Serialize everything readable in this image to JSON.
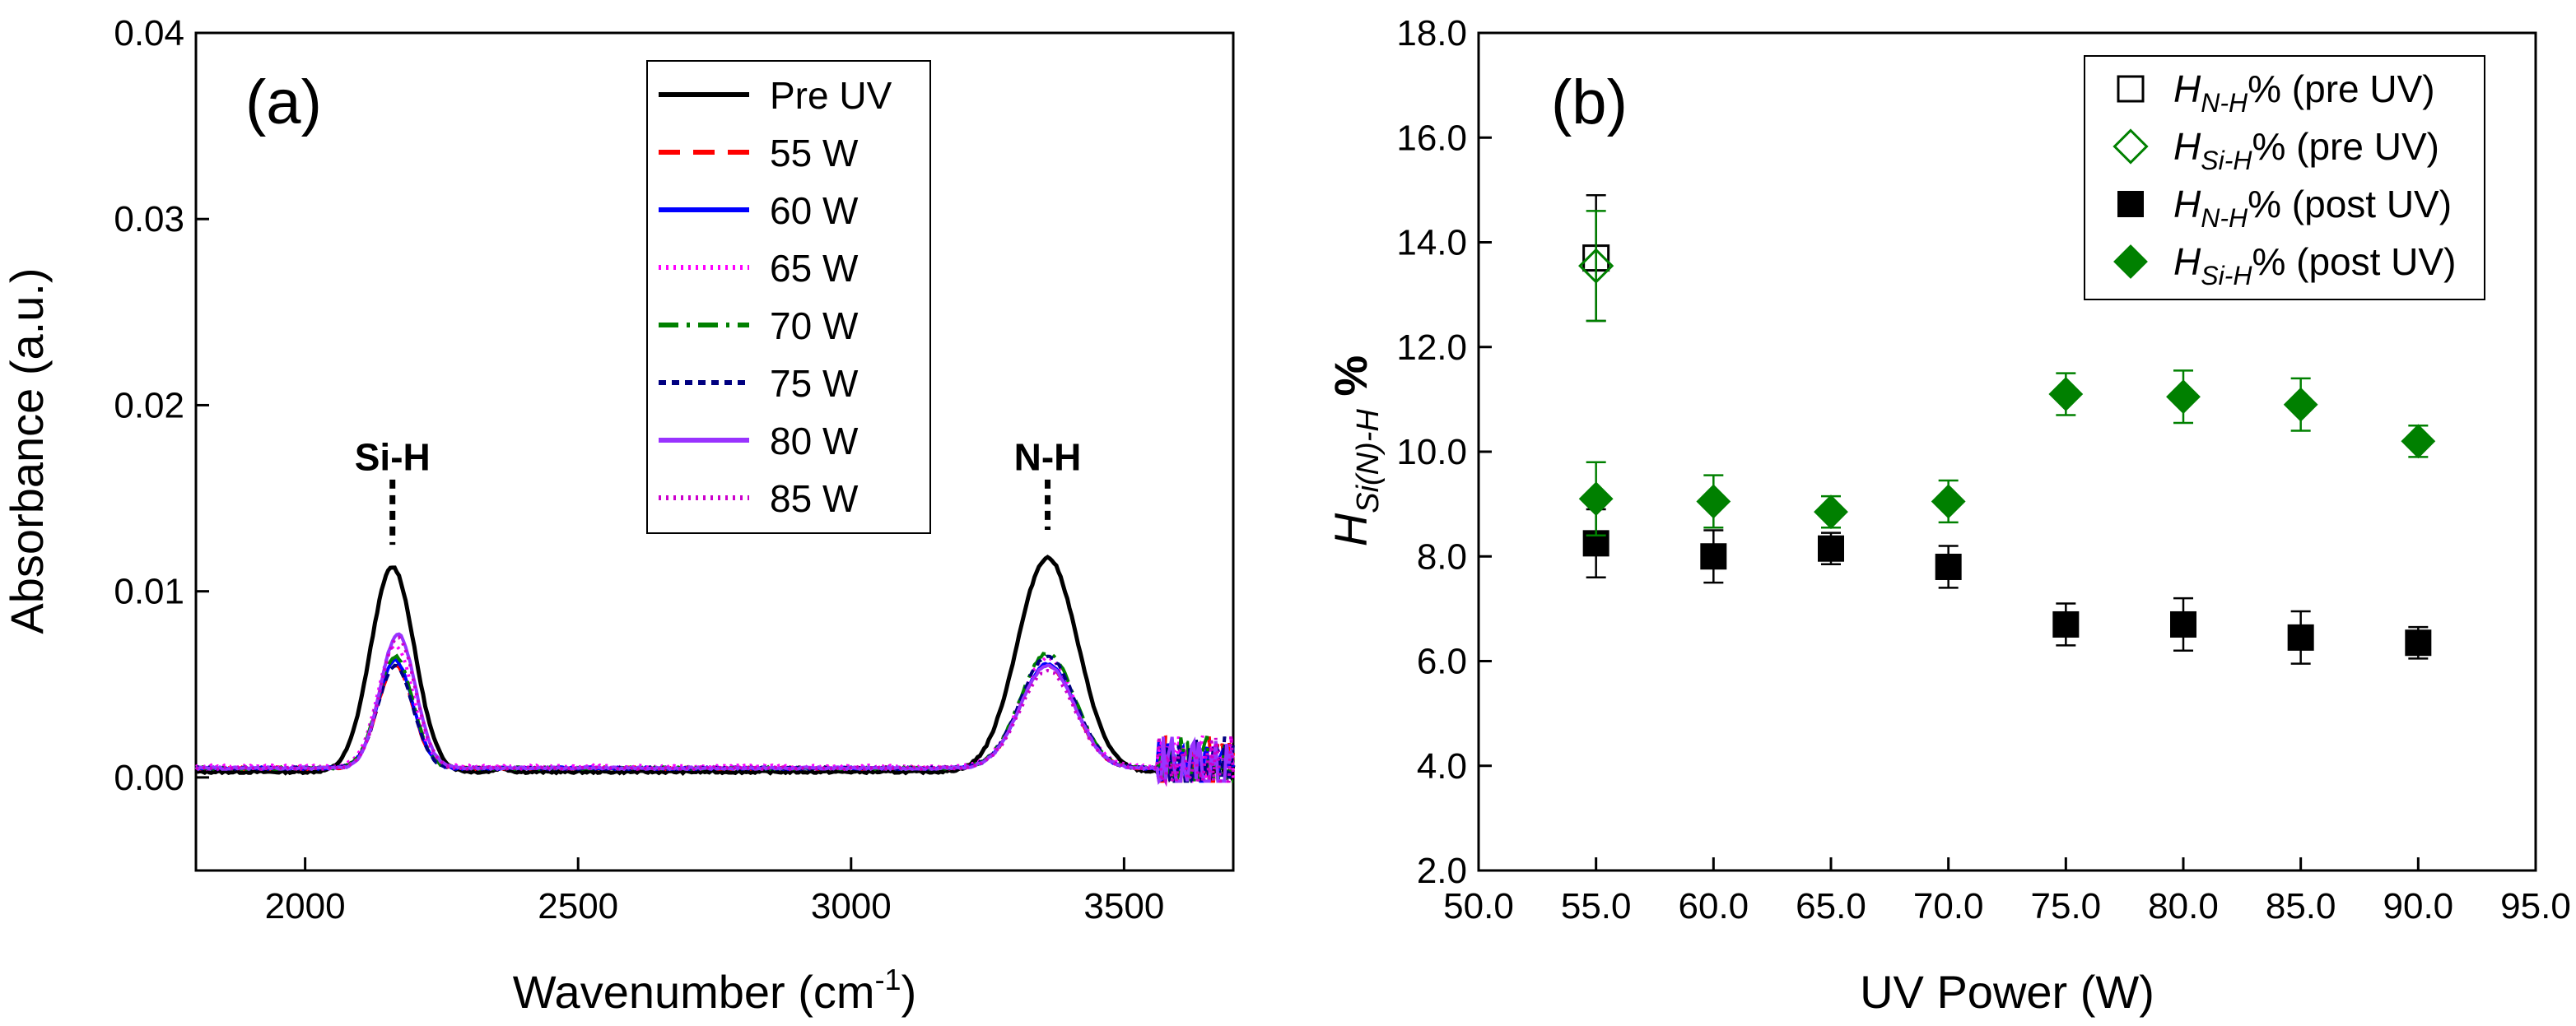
{
  "chart_data": [
    {
      "type": "line",
      "panel_label": "(a)",
      "xlabel": "Wavenumber (cm",
      "xlabel_sup": "-1",
      "xlabel_tail": ")",
      "ylabel": "Absorbance (a.u.)",
      "xlim": [
        1800,
        3700
      ],
      "ylim": [
        -0.005,
        0.04
      ],
      "xticks": [
        2000,
        2500,
        3000,
        3500
      ],
      "yticks": [
        0.0,
        0.01,
        0.02,
        0.03,
        0.04
      ],
      "ytick_labels": [
        "0.00",
        "0.01",
        "0.02",
        "0.03",
        "0.04"
      ],
      "legend_position": "top-center",
      "annotations": [
        {
          "text": "Si-H",
          "x": 2160,
          "y": 0.0165,
          "line_from": 0.016,
          "line_to": 0.0125
        },
        {
          "text": "N-H",
          "x": 3360,
          "y": 0.0165,
          "line_from": 0.016,
          "line_to": 0.0133
        }
      ],
      "series": [
        {
          "name": "Pre UV",
          "color": "#000000",
          "dash": "",
          "base": 0.0003,
          "peaks": [
            [
              2160,
              0.011,
              40
            ],
            [
              3360,
              0.0115,
              55
            ],
            [
              2360,
              0.0002,
              12
            ]
          ]
        },
        {
          "name": "55 W",
          "color": "#ff0000",
          "dash": "26,16",
          "base": 0.0005,
          "peaks": [
            [
              2165,
              0.0055,
              32
            ],
            [
              3360,
              0.0055,
              50
            ]
          ]
        },
        {
          "name": "60 W",
          "color": "#0000ff",
          "dash": "",
          "base": 0.0005,
          "peaks": [
            [
              2165,
              0.0058,
              32
            ],
            [
              3360,
              0.0056,
              50
            ]
          ]
        },
        {
          "name": "65 W",
          "color": "#ff00ff",
          "dash": "3,6",
          "base": 0.0006,
          "peaks": [
            [
              2165,
              0.0065,
              32
            ],
            [
              3360,
              0.0058,
              50
            ]
          ]
        },
        {
          "name": "70 W",
          "color": "#008000",
          "dash": "24,10,4,10",
          "base": 0.0005,
          "peaks": [
            [
              2165,
              0.006,
              32
            ],
            [
              3360,
              0.0062,
              50
            ]
          ]
        },
        {
          "name": "75 W",
          "color": "#000080",
          "dash": "9,7",
          "base": 0.0005,
          "peaks": [
            [
              2165,
              0.0055,
              32
            ],
            [
              3360,
              0.006,
              50
            ]
          ]
        },
        {
          "name": "80 W",
          "color": "#9933ff",
          "dash": "",
          "base": 0.0005,
          "peaks": [
            [
              2170,
              0.0072,
              32
            ],
            [
              3360,
              0.0055,
              50
            ]
          ]
        },
        {
          "name": "85 W",
          "color": "#cc00cc",
          "dash": "3,6",
          "base": 0.0005,
          "peaks": [
            [
              2170,
              0.007,
              32
            ],
            [
              3360,
              0.0052,
              50
            ]
          ]
        }
      ]
    },
    {
      "type": "scatter",
      "panel_label": "(b)",
      "xlabel": "UV Power (W)",
      "ylabel_main": "H",
      "ylabel_sub": "Si(N)-H",
      "ylabel_tail": " %",
      "xlim": [
        50,
        95
      ],
      "ylim": [
        2,
        18
      ],
      "xticks": [
        50,
        55,
        60,
        65,
        70,
        75,
        80,
        85,
        90,
        95
      ],
      "xtick_labels": [
        "50.0",
        "55.0",
        "60.0",
        "65.0",
        "70.0",
        "75.0",
        "80.0",
        "85.0",
        "90.0",
        "95.0"
      ],
      "yticks": [
        2,
        4,
        6,
        8,
        10,
        12,
        14,
        16,
        18
      ],
      "ytick_labels": [
        "2.0",
        "4.0",
        "6.0",
        "8.0",
        "10.0",
        "12.0",
        "14.0",
        "16.0",
        "18.0"
      ],
      "legend_position": "top-right",
      "series": [
        {
          "name": "H",
          "sub": "N-H",
          "tail": "% (pre UV)",
          "marker": "square-open",
          "color": "#000000",
          "x": [
            55
          ],
          "y": [
            13.7
          ],
          "err": [
            1.2
          ]
        },
        {
          "name": "H",
          "sub": "Si-H",
          "tail": "% (pre UV)",
          "marker": "diamond-open",
          "color": "#008000",
          "x": [
            55
          ],
          "y": [
            13.55
          ],
          "err": [
            1.05
          ]
        },
        {
          "name": "H",
          "sub": "N-H",
          "tail": "% (post UV)",
          "marker": "square-filled",
          "color": "#000000",
          "x": [
            55,
            60,
            65,
            70,
            75,
            80,
            85,
            90
          ],
          "y": [
            8.25,
            8.0,
            8.15,
            7.8,
            6.7,
            6.7,
            6.45,
            6.35
          ],
          "err": [
            0.65,
            0.5,
            0.3,
            0.4,
            0.4,
            0.5,
            0.5,
            0.3
          ]
        },
        {
          "name": "H",
          "sub": "Si-H",
          "tail": "% (post UV)",
          "marker": "diamond-filled",
          "color": "#008000",
          "x": [
            55,
            60,
            65,
            70,
            75,
            80,
            85,
            90
          ],
          "y": [
            9.1,
            9.05,
            8.85,
            9.05,
            11.1,
            11.05,
            10.9,
            10.2
          ],
          "err": [
            0.7,
            0.5,
            0.3,
            0.4,
            0.4,
            0.5,
            0.5,
            0.3
          ]
        }
      ]
    }
  ]
}
